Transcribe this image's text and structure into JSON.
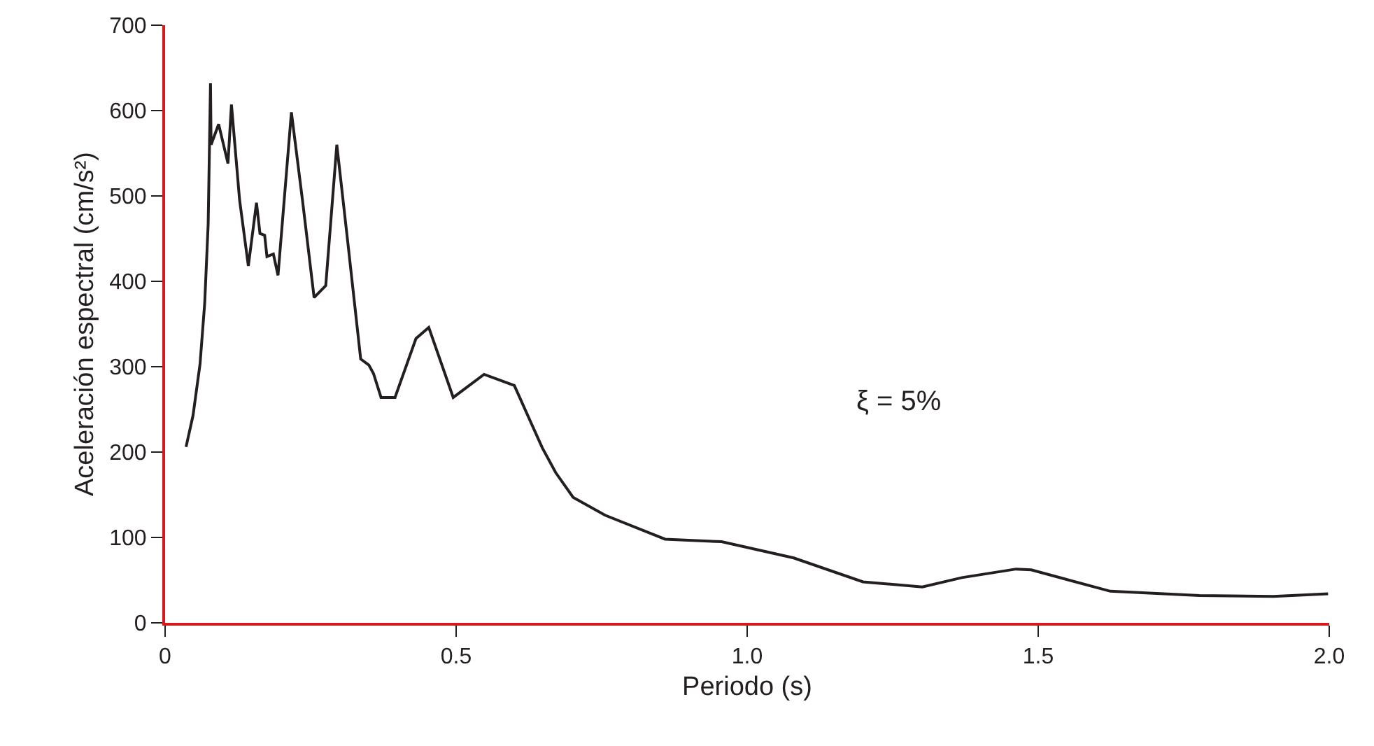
{
  "chart_data": {
    "type": "line",
    "xlabel": "Periodo (s)",
    "ylabel": "Aceleración espectral (cm/s²)",
    "annotations": [
      "ξ = 5%"
    ],
    "x": [
      0.036,
      0.048,
      0.06,
      0.068,
      0.074,
      0.078,
      0.079,
      0.092,
      0.108,
      0.114,
      0.128,
      0.143,
      0.157,
      0.163,
      0.171,
      0.175,
      0.186,
      0.194,
      0.217,
      0.236,
      0.256,
      0.276,
      0.295,
      0.314,
      0.336,
      0.35,
      0.358,
      0.371,
      0.395,
      0.431,
      0.453,
      0.495,
      0.548,
      0.6,
      0.648,
      0.671,
      0.701,
      0.756,
      0.859,
      0.956,
      1.08,
      1.199,
      1.301,
      1.369,
      1.462,
      1.488,
      1.624,
      1.777,
      1.904,
      1.998
    ],
    "series": [
      {
        "color": "#231f20",
        "values": [
          206,
          243,
          303,
          374,
          467,
          632,
          560,
          584,
          538,
          607,
          495,
          418,
          492,
          456,
          454,
          429,
          432,
          407,
          598,
          495,
          381,
          395,
          560,
          445,
          309,
          302,
          292,
          264,
          264,
          333,
          346,
          264,
          291,
          278,
          205,
          176,
          147,
          126,
          98,
          95,
          76,
          48,
          42,
          53,
          63,
          62,
          37,
          32,
          31,
          34
        ]
      }
    ],
    "xlim": [
      0,
      2.0
    ],
    "xticks": [
      0,
      {
        "value": 0.5,
        "label": "0.5"
      },
      {
        "value": 1.0,
        "label": "1.0"
      },
      {
        "value": 1.5,
        "label": "1.5"
      },
      {
        "value": 2.0,
        "label": "2.0"
      }
    ],
    "ylim": [
      0,
      700
    ],
    "yticks": [
      0,
      100,
      200,
      300,
      400,
      500,
      600,
      700
    ],
    "marker": "none",
    "line_style": "solid"
  }
}
